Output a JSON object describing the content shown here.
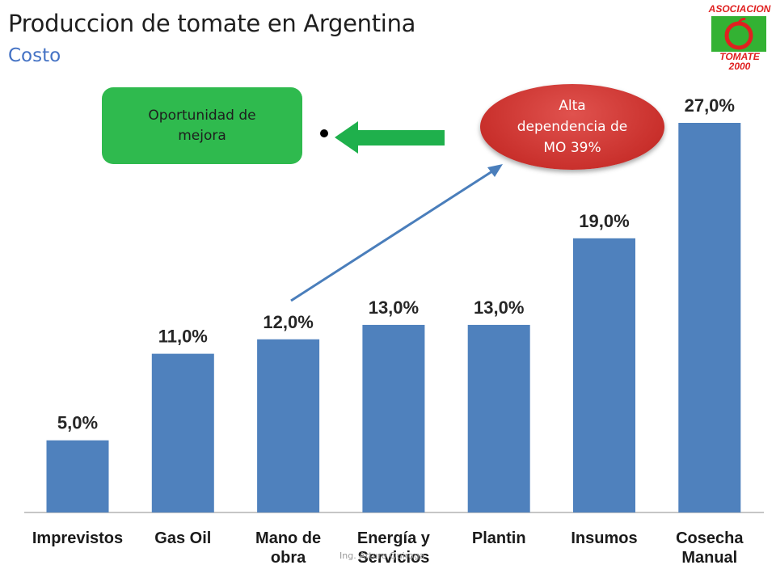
{
  "title": "Produccion de tomate en Argentina",
  "subtitle": "Costo",
  "logo": {
    "top_text": "ASOCIACION",
    "bottom_text_1": "TOMATE",
    "bottom_text_2": "2000"
  },
  "callouts": {
    "green": "Oportunidad de mejora",
    "red": "Alta dependencia de MO 39%"
  },
  "footer": "Ing. Arturo Quiroga",
  "colors": {
    "bar": "#4f81bd",
    "arrow_green": "#1fb04c",
    "arrow_blue": "#4a7ebb"
  },
  "chart_data": {
    "type": "bar",
    "categories": [
      "Imprevistos",
      "Gas Oil",
      "Mano de obra",
      "Energía y Servicios",
      "Plantin",
      "Insumos",
      "Cosecha Manual"
    ],
    "category_lines": [
      [
        "Imprevistos"
      ],
      [
        "Gas Oil"
      ],
      [
        "Mano de",
        "obra"
      ],
      [
        "Energía y",
        "Servicios"
      ],
      [
        "Plantin"
      ],
      [
        "Insumos"
      ],
      [
        "Cosecha",
        "Manual"
      ]
    ],
    "values": [
      5.0,
      11.0,
      12.0,
      13.0,
      13.0,
      19.0,
      27.0
    ],
    "value_labels": [
      "5,0%",
      "11,0%",
      "12,0%",
      "13,0%",
      "13,0%",
      "19,0%",
      "27,0%"
    ],
    "ylim": [
      0,
      27
    ],
    "grid": false
  }
}
